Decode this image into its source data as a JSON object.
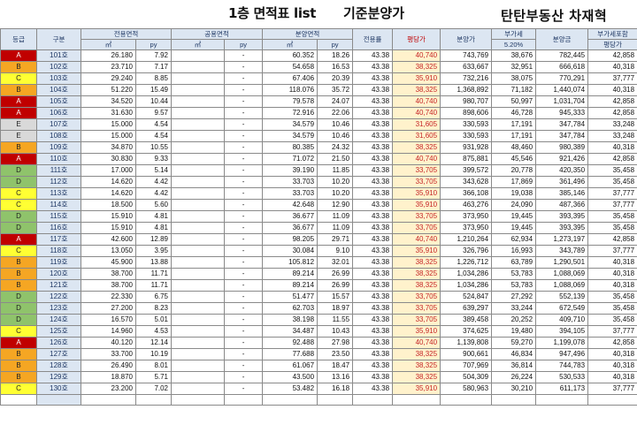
{
  "header": {
    "title": "1층 면적표 list",
    "basis": "기준분양가",
    "author": "탄탄부동산 차재혁"
  },
  "columns": {
    "grade": "등급",
    "unit": "구분",
    "exclusive": "전용면적",
    "common": "공용면적",
    "sale": "분양면적",
    "ratio": "전용률",
    "price_per_py": "평당가",
    "sale_price": "분양가",
    "vat": "부가세",
    "vat_rate": "5.20%",
    "sale_total": "분양금",
    "vat_incl_1": "부가세포함",
    "vat_incl_2": "평당가",
    "m2": "㎡",
    "py": "py"
  },
  "rows": [
    {
      "grade": "A",
      "unit": "101호",
      "ex_m2": "26.180",
      "ex_py": "7.92",
      "common": "-",
      "sale_m2": "60.352",
      "sale_py": "18.26",
      "ratio": "43.38",
      "pp": "40,740",
      "price": "743,769",
      "vat": "38,676",
      "total": "782,445",
      "incl": "42,858"
    },
    {
      "grade": "B",
      "unit": "102호",
      "ex_m2": "23.710",
      "ex_py": "7.17",
      "common": "-",
      "sale_m2": "54.658",
      "sale_py": "16.53",
      "ratio": "43.38",
      "pp": "38,325",
      "price": "633,667",
      "vat": "32,951",
      "total": "666,618",
      "incl": "40,318"
    },
    {
      "grade": "C",
      "unit": "103호",
      "ex_m2": "29.240",
      "ex_py": "8.85",
      "common": "-",
      "sale_m2": "67.406",
      "sale_py": "20.39",
      "ratio": "43.38",
      "pp": "35,910",
      "price": "732,216",
      "vat": "38,075",
      "total": "770,291",
      "incl": "37,777"
    },
    {
      "grade": "B",
      "unit": "104호",
      "ex_m2": "51.220",
      "ex_py": "15.49",
      "common": "-",
      "sale_m2": "118.076",
      "sale_py": "35.72",
      "ratio": "43.38",
      "pp": "38,325",
      "price": "1,368,892",
      "vat": "71,182",
      "total": "1,440,074",
      "incl": "40,318"
    },
    {
      "grade": "A",
      "unit": "105호",
      "ex_m2": "34.520",
      "ex_py": "10.44",
      "common": "-",
      "sale_m2": "79.578",
      "sale_py": "24.07",
      "ratio": "43.38",
      "pp": "40,740",
      "price": "980,707",
      "vat": "50,997",
      "total": "1,031,704",
      "incl": "42,858"
    },
    {
      "grade": "A",
      "unit": "106호",
      "ex_m2": "31.630",
      "ex_py": "9.57",
      "common": "-",
      "sale_m2": "72.916",
      "sale_py": "22.06",
      "ratio": "43.38",
      "pp": "40,740",
      "price": "898,606",
      "vat": "46,728",
      "total": "945,333",
      "incl": "42,858"
    },
    {
      "grade": "E",
      "unit": "107호",
      "ex_m2": "15.000",
      "ex_py": "4.54",
      "common": "-",
      "sale_m2": "34.579",
      "sale_py": "10.46",
      "ratio": "43.38",
      "pp": "31,605",
      "price": "330,593",
      "vat": "17,191",
      "total": "347,784",
      "incl": "33,248"
    },
    {
      "grade": "E",
      "unit": "108호",
      "ex_m2": "15.000",
      "ex_py": "4.54",
      "common": "-",
      "sale_m2": "34.579",
      "sale_py": "10.46",
      "ratio": "43.38",
      "pp": "31,605",
      "price": "330,593",
      "vat": "17,191",
      "total": "347,784",
      "incl": "33,248"
    },
    {
      "grade": "B",
      "unit": "109호",
      "ex_m2": "34.870",
      "ex_py": "10.55",
      "common": "-",
      "sale_m2": "80.385",
      "sale_py": "24.32",
      "ratio": "43.38",
      "pp": "38,325",
      "price": "931,928",
      "vat": "48,460",
      "total": "980,389",
      "incl": "40,318"
    },
    {
      "grade": "A",
      "unit": "110호",
      "ex_m2": "30.830",
      "ex_py": "9.33",
      "common": "-",
      "sale_m2": "71.072",
      "sale_py": "21.50",
      "ratio": "43.38",
      "pp": "40,740",
      "price": "875,881",
      "vat": "45,546",
      "total": "921,426",
      "incl": "42,858"
    },
    {
      "grade": "D",
      "unit": "111호",
      "ex_m2": "17.000",
      "ex_py": "5.14",
      "common": "-",
      "sale_m2": "39.190",
      "sale_py": "11.85",
      "ratio": "43.38",
      "pp": "33,705",
      "price": "399,572",
      "vat": "20,778",
      "total": "420,350",
      "incl": "35,458"
    },
    {
      "grade": "D",
      "unit": "112호",
      "ex_m2": "14.620",
      "ex_py": "4.42",
      "common": "-",
      "sale_m2": "33.703",
      "sale_py": "10.20",
      "ratio": "43.38",
      "pp": "33,705",
      "price": "343,628",
      "vat": "17,869",
      "total": "361,496",
      "incl": "35,458"
    },
    {
      "grade": "C",
      "unit": "113호",
      "ex_m2": "14.620",
      "ex_py": "4.42",
      "common": "-",
      "sale_m2": "33.703",
      "sale_py": "10.20",
      "ratio": "43.38",
      "pp": "35,910",
      "price": "366,108",
      "vat": "19,038",
      "total": "385,146",
      "incl": "37,777"
    },
    {
      "grade": "C",
      "unit": "114호",
      "ex_m2": "18.500",
      "ex_py": "5.60",
      "common": "-",
      "sale_m2": "42.648",
      "sale_py": "12.90",
      "ratio": "43.38",
      "pp": "35,910",
      "price": "463,276",
      "vat": "24,090",
      "total": "487,366",
      "incl": "37,777"
    },
    {
      "grade": "D",
      "unit": "115호",
      "ex_m2": "15.910",
      "ex_py": "4.81",
      "common": "-",
      "sale_m2": "36.677",
      "sale_py": "11.09",
      "ratio": "43.38",
      "pp": "33,705",
      "price": "373,950",
      "vat": "19,445",
      "total": "393,395",
      "incl": "35,458"
    },
    {
      "grade": "D",
      "unit": "116호",
      "ex_m2": "15.910",
      "ex_py": "4.81",
      "common": "-",
      "sale_m2": "36.677",
      "sale_py": "11.09",
      "ratio": "43.38",
      "pp": "33,705",
      "price": "373,950",
      "vat": "19,445",
      "total": "393,395",
      "incl": "35,458"
    },
    {
      "grade": "A",
      "unit": "117호",
      "ex_m2": "42.600",
      "ex_py": "12.89",
      "common": "-",
      "sale_m2": "98.205",
      "sale_py": "29.71",
      "ratio": "43.38",
      "pp": "40,740",
      "price": "1,210,264",
      "vat": "62,934",
      "total": "1,273,197",
      "incl": "42,858"
    },
    {
      "grade": "C",
      "unit": "118호",
      "ex_m2": "13.050",
      "ex_py": "3.95",
      "common": "-",
      "sale_m2": "30.084",
      "sale_py": "9.10",
      "ratio": "43.38",
      "pp": "35,910",
      "price": "326,796",
      "vat": "16,993",
      "total": "343,789",
      "incl": "37,777"
    },
    {
      "grade": "B",
      "unit": "119호",
      "ex_m2": "45.900",
      "ex_py": "13.88",
      "common": "-",
      "sale_m2": "105.812",
      "sale_py": "32.01",
      "ratio": "43.38",
      "pp": "38,325",
      "price": "1,226,712",
      "vat": "63,789",
      "total": "1,290,501",
      "incl": "40,318"
    },
    {
      "grade": "B",
      "unit": "120호",
      "ex_m2": "38.700",
      "ex_py": "11.71",
      "common": "-",
      "sale_m2": "89.214",
      "sale_py": "26.99",
      "ratio": "43.38",
      "pp": "38,325",
      "price": "1,034,286",
      "vat": "53,783",
      "total": "1,088,069",
      "incl": "40,318"
    },
    {
      "grade": "B",
      "unit": "121호",
      "ex_m2": "38.700",
      "ex_py": "11.71",
      "common": "-",
      "sale_m2": "89.214",
      "sale_py": "26.99",
      "ratio": "43.38",
      "pp": "38,325",
      "price": "1,034,286",
      "vat": "53,783",
      "total": "1,088,069",
      "incl": "40,318"
    },
    {
      "grade": "D",
      "unit": "122호",
      "ex_m2": "22.330",
      "ex_py": "6.75",
      "common": "-",
      "sale_m2": "51.477",
      "sale_py": "15.57",
      "ratio": "43.38",
      "pp": "33,705",
      "price": "524,847",
      "vat": "27,292",
      "total": "552,139",
      "incl": "35,458"
    },
    {
      "grade": "D",
      "unit": "123호",
      "ex_m2": "27.200",
      "ex_py": "8.23",
      "common": "-",
      "sale_m2": "62.703",
      "sale_py": "18.97",
      "ratio": "43.38",
      "pp": "33,705",
      "price": "639,297",
      "vat": "33,244",
      "total": "672,549",
      "incl": "35,458"
    },
    {
      "grade": "D",
      "unit": "124호",
      "ex_m2": "16.570",
      "ex_py": "5.01",
      "common": "-",
      "sale_m2": "38.198",
      "sale_py": "11.55",
      "ratio": "43.38",
      "pp": "33,705",
      "price": "389,458",
      "vat": "20,252",
      "total": "409,710",
      "incl": "35,458"
    },
    {
      "grade": "C",
      "unit": "125호",
      "ex_m2": "14.960",
      "ex_py": "4.53",
      "common": "-",
      "sale_m2": "34.487",
      "sale_py": "10.43",
      "ratio": "43.38",
      "pp": "35,910",
      "price": "374,625",
      "vat": "19,480",
      "total": "394,105",
      "incl": "37,777"
    },
    {
      "grade": "A",
      "unit": "126호",
      "ex_m2": "40.120",
      "ex_py": "12.14",
      "common": "-",
      "sale_m2": "92.488",
      "sale_py": "27.98",
      "ratio": "43.38",
      "pp": "40,740",
      "price": "1,139,808",
      "vat": "59,270",
      "total": "1,199,078",
      "incl": "42,858"
    },
    {
      "grade": "B",
      "unit": "127호",
      "ex_m2": "33.700",
      "ex_py": "10.19",
      "common": "-",
      "sale_m2": "77.688",
      "sale_py": "23.50",
      "ratio": "43.38",
      "pp": "38,325",
      "price": "900,661",
      "vat": "46,834",
      "total": "947,496",
      "incl": "40,318"
    },
    {
      "grade": "B",
      "unit": "128호",
      "ex_m2": "26.490",
      "ex_py": "8.01",
      "common": "-",
      "sale_m2": "61.067",
      "sale_py": "18.47",
      "ratio": "43.38",
      "pp": "38,325",
      "price": "707,969",
      "vat": "36,814",
      "total": "744,783",
      "incl": "40,318"
    },
    {
      "grade": "B",
      "unit": "129호",
      "ex_m2": "18.870",
      "ex_py": "5.71",
      "common": "-",
      "sale_m2": "43.500",
      "sale_py": "13.16",
      "ratio": "43.38",
      "pp": "38,325",
      "price": "504,309",
      "vat": "26,224",
      "total": "530,533",
      "incl": "40,318"
    },
    {
      "grade": "C",
      "unit": "130호",
      "ex_m2": "23.200",
      "ex_py": "7.02",
      "common": "-",
      "sale_m2": "53.482",
      "sale_py": "16.18",
      "ratio": "43.38",
      "pp": "35,910",
      "price": "580,963",
      "vat": "30,210",
      "total": "611,173",
      "incl": "37,777"
    }
  ]
}
